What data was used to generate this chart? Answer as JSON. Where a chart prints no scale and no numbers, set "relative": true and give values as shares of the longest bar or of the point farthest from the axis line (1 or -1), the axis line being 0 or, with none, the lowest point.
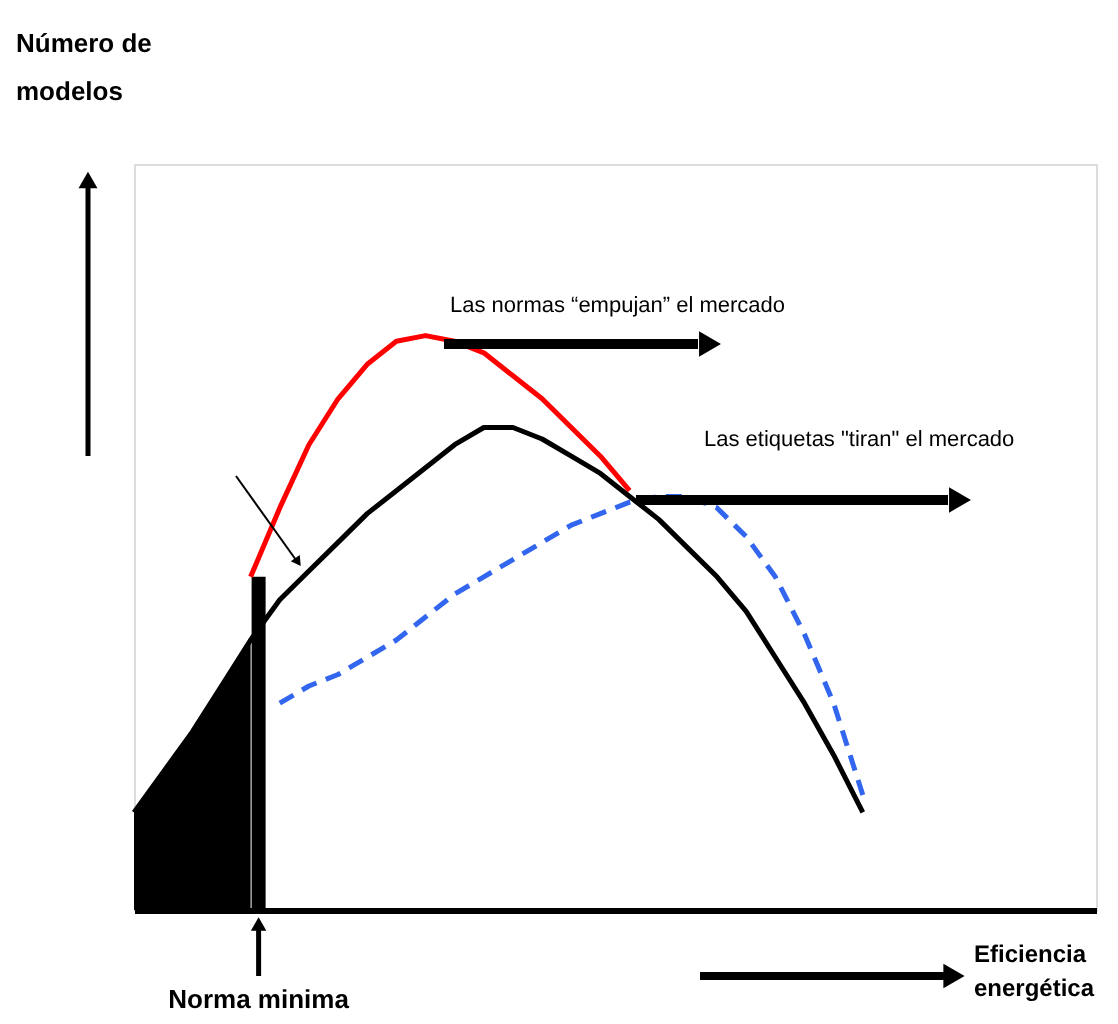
{
  "chart_data": {
    "type": "line",
    "relative": true,
    "xlabel": "Eficiencia\nenergética",
    "categories": [
      null,
      null,
      null,
      null,
      null,
      null,
      null,
      null,
      null,
      null,
      null,
      null,
      null,
      null,
      null,
      null,
      null,
      null,
      null,
      null,
      null,
      null,
      null,
      null,
      null,
      null,
      null,
      null,
      null,
      null,
      null,
      null,
      null,
      null
    ],
    "series": [
      {
        "type": "area",
        "color": "#000000",
        "values": [
          0.17,
          0.24,
          0.31,
          0.39,
          0.47,
          null,
          null,
          null,
          null,
          null,
          null,
          null,
          null,
          null,
          null,
          null,
          null,
          null,
          null,
          null,
          null,
          null,
          null,
          null,
          null,
          null,
          null,
          null,
          null,
          null,
          null,
          null,
          null,
          null
        ]
      },
      {
        "color": "#000000",
        "line_style": "solid",
        "values": [
          0.17,
          0.24,
          0.31,
          0.39,
          0.47,
          0.54,
          0.59,
          0.64,
          0.69,
          0.73,
          0.77,
          0.81,
          0.84,
          0.84,
          0.82,
          0.79,
          0.76,
          0.72,
          0.68,
          0.63,
          0.58,
          0.52,
          0.44,
          0.36,
          0.27,
          0.17,
          null,
          null,
          null,
          null,
          null,
          null,
          null,
          null
        ]
      },
      {
        "color": "#ff0000",
        "line_style": "solid",
        "values": [
          null,
          null,
          null,
          null,
          0.58,
          0.7,
          0.81,
          0.89,
          0.95,
          0.99,
          1.0,
          0.99,
          0.97,
          0.93,
          0.89,
          0.84,
          0.79,
          0.73,
          null,
          null,
          null,
          null,
          null,
          null,
          null,
          null,
          null,
          null,
          null,
          null,
          null,
          null,
          null,
          null
        ]
      },
      {
        "color": "#3366ee",
        "line_style": "dashed",
        "values": [
          null,
          null,
          null,
          null,
          null,
          0.36,
          0.39,
          0.41,
          0.44,
          0.47,
          0.51,
          0.55,
          0.58,
          0.61,
          0.64,
          0.67,
          0.69,
          0.71,
          0.72,
          0.72,
          0.7,
          0.65,
          0.58,
          0.48,
          0.36,
          0.2,
          null,
          null,
          null,
          null,
          null,
          null,
          null,
          null
        ]
      }
    ],
    "annotations": [
      "Número de\nmodelos",
      "Las normas “empujan” el mercado",
      "Las etiquetas \"tiran\" el mercado",
      "Norma minima"
    ]
  }
}
